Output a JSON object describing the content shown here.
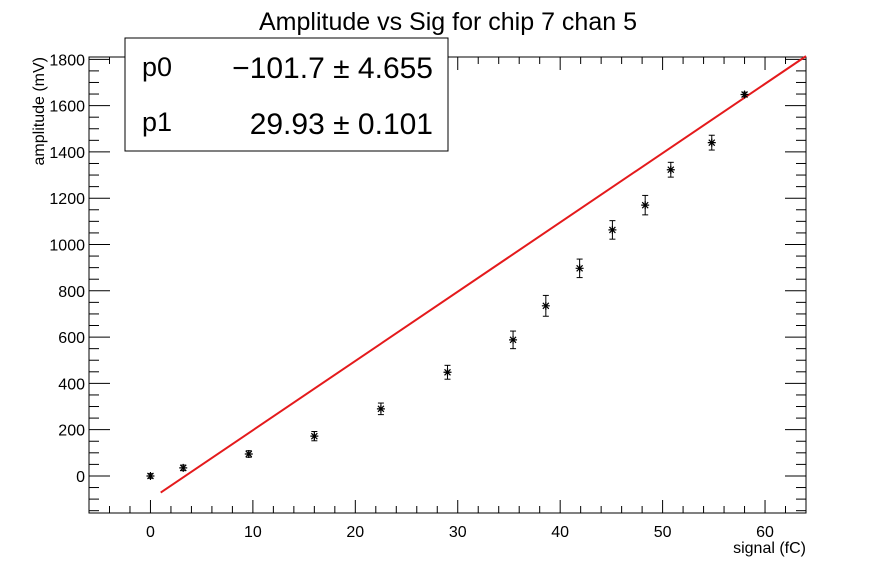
{
  "chart_data": {
    "type": "scatter",
    "title": "Amplitude vs Sig for chip 7 chan 5",
    "xlabel": "signal (fC)",
    "ylabel": "amplitude (mV)",
    "xlim": [
      -6,
      64
    ],
    "ylim": [
      -160,
      1810
    ],
    "x_ticks": [
      0,
      10,
      20,
      30,
      40,
      50,
      60
    ],
    "y_ticks": [
      0,
      200,
      400,
      600,
      800,
      1000,
      1200,
      1400,
      1600,
      1800
    ],
    "grid": false,
    "fit": {
      "type": "linear",
      "color": "#e41a1c",
      "x_range": [
        1,
        64
      ],
      "params": [
        {
          "name": "p0",
          "value": "−101.7",
          "error": "4.655",
          "num": -101.7
        },
        {
          "name": "p1",
          "value": "29.93",
          "error": "0.101",
          "num": 29.93
        }
      ]
    },
    "series": [
      {
        "marker": "asterisk",
        "points": [
          {
            "x": 0.0,
            "y": 0,
            "err": 10
          },
          {
            "x": 3.2,
            "y": 35,
            "err": 12
          },
          {
            "x": 9.6,
            "y": 95,
            "err": 14
          },
          {
            "x": 16.0,
            "y": 172,
            "err": 20
          },
          {
            "x": 22.5,
            "y": 290,
            "err": 25
          },
          {
            "x": 29.0,
            "y": 448,
            "err": 30
          },
          {
            "x": 35.4,
            "y": 588,
            "err": 38
          },
          {
            "x": 38.6,
            "y": 735,
            "err": 45
          },
          {
            "x": 41.9,
            "y": 897,
            "err": 40
          },
          {
            "x": 45.1,
            "y": 1063,
            "err": 40
          },
          {
            "x": 48.3,
            "y": 1170,
            "err": 42
          },
          {
            "x": 50.8,
            "y": 1323,
            "err": 32
          },
          {
            "x": 54.8,
            "y": 1440,
            "err": 32
          },
          {
            "x": 58.0,
            "y": 1648,
            "err": 10
          }
        ]
      }
    ]
  }
}
